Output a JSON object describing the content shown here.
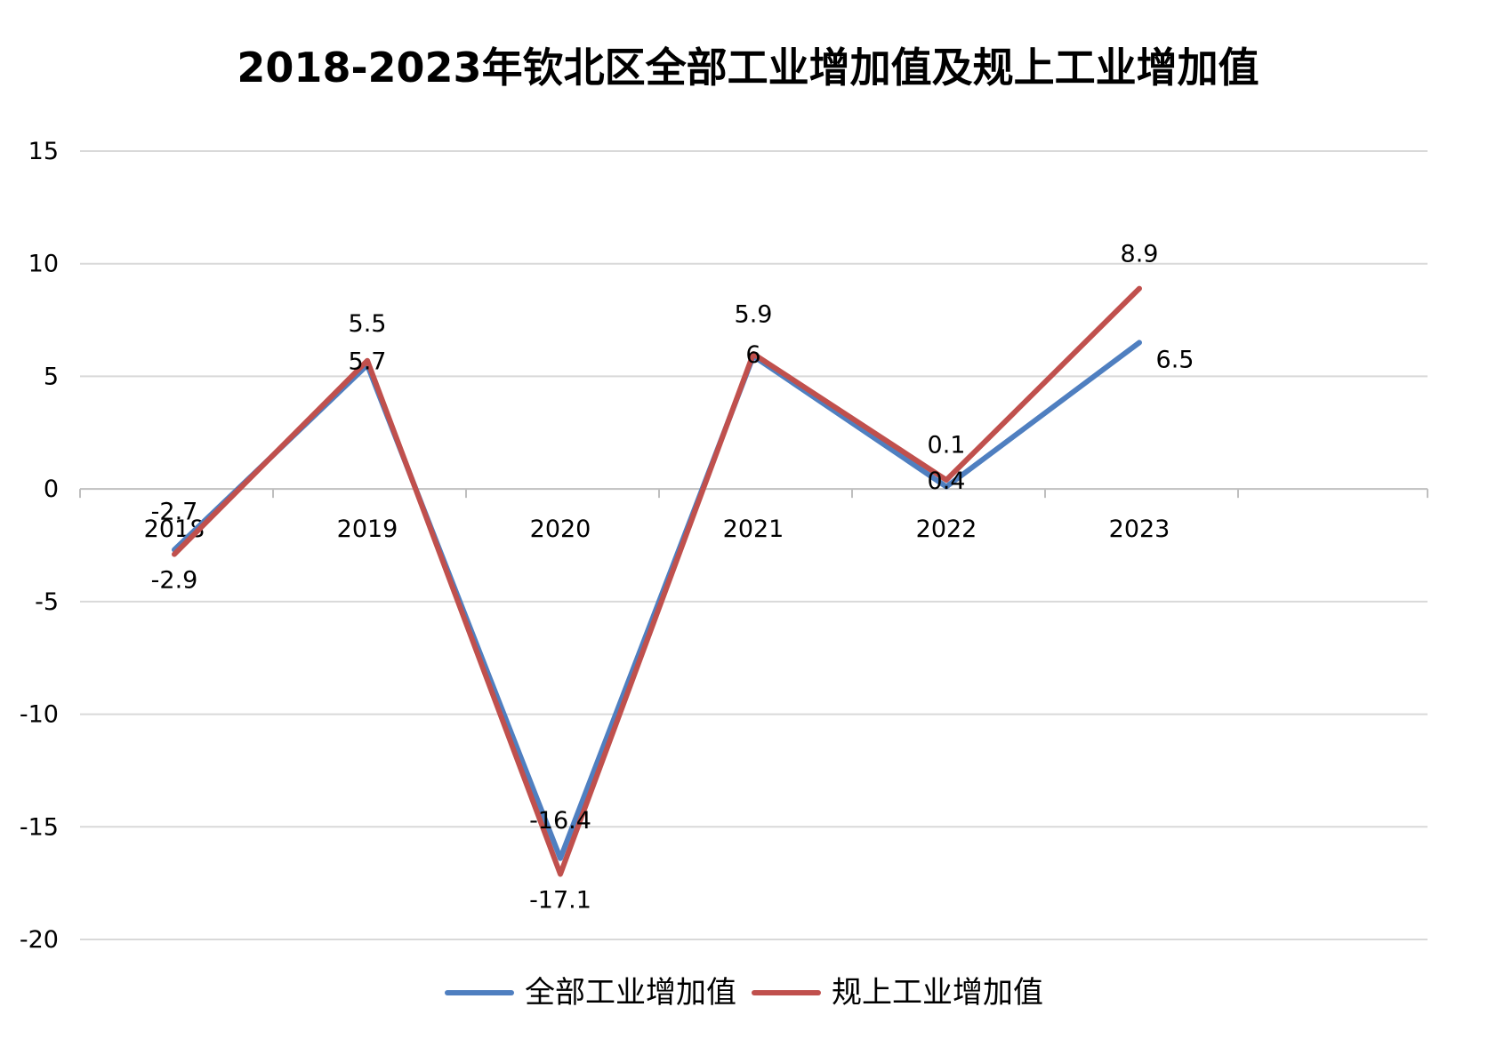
{
  "chart_data": {
    "type": "line",
    "title": "2018-2023年钦北区全部工业增加值及规上工业增加值",
    "xlabel": "",
    "ylabel": "",
    "categories": [
      "2018",
      "2019",
      "2020",
      "2021",
      "2022",
      "2023"
    ],
    "ylim": [
      -20,
      15
    ],
    "yticks": [
      15,
      10,
      5,
      0,
      -5,
      -10,
      -15,
      -20
    ],
    "grid": true,
    "legend_position": "bottom",
    "series": [
      {
        "name": "全部工业增加值",
        "color": "#4F7FC0",
        "values": [
          -2.7,
          5.5,
          -16.4,
          5.9,
          0.1,
          6.5
        ]
      },
      {
        "name": "规上工业增加值",
        "color": "#C0504D",
        "values": [
          -2.9,
          5.7,
          -17.1,
          6,
          0.4,
          8.9
        ]
      }
    ]
  }
}
